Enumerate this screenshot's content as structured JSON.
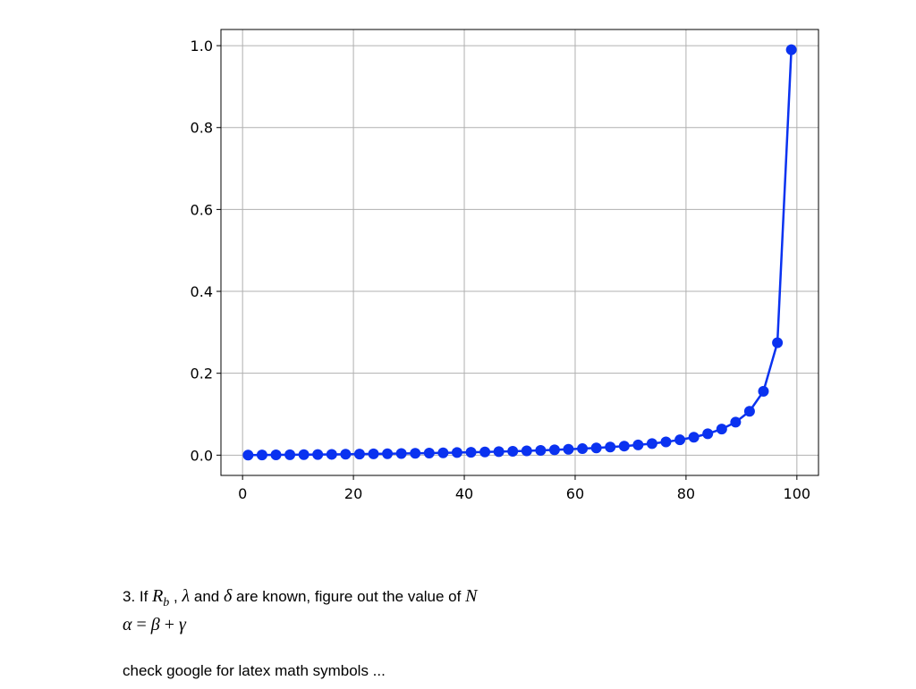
{
  "chart_data": {
    "type": "line",
    "x": [
      1.0,
      3.51,
      6.03,
      8.54,
      11.05,
      13.56,
      16.08,
      18.59,
      21.1,
      23.62,
      26.13,
      28.64,
      31.15,
      33.67,
      36.18,
      38.69,
      41.21,
      43.72,
      46.23,
      48.74,
      51.26,
      53.77,
      56.28,
      58.79,
      61.31,
      63.82,
      66.33,
      68.85,
      71.36,
      73.87,
      76.38,
      78.9,
      81.41,
      83.92,
      86.44,
      88.95,
      91.46,
      93.97,
      96.49,
      99.0
    ],
    "series": [
      {
        "color": "#0a32f0",
        "values": [
          0.000101,
          0.000364,
          0.000641,
          0.000934,
          0.001242,
          0.001569,
          0.001916,
          0.002283,
          0.002675,
          0.003092,
          0.003537,
          0.004014,
          0.004525,
          0.005075,
          0.005669,
          0.006311,
          0.007008,
          0.007768,
          0.008598,
          0.00951,
          0.010516,
          0.011631,
          0.012874,
          0.014269,
          0.015845,
          0.01764,
          0.019703,
          0.022099,
          0.024915,
          0.028273,
          0.032346,
          0.037387,
          0.043793,
          0.052201,
          0.063725,
          0.080489,
          0.107117,
          0.155959,
          0.274673,
          0.99
        ]
      }
    ],
    "xlim": [
      -3.9,
      103.9
    ],
    "ylim": [
      -0.0495,
      1.0395
    ],
    "xticks": [
      0,
      20,
      40,
      60,
      80,
      100
    ],
    "yticks": [
      {
        "value": 0,
        "label": "0.0"
      },
      {
        "value": 0.2,
        "label": "0.2"
      },
      {
        "value": 0.4,
        "label": "0.4"
      },
      {
        "value": 0.6,
        "label": "0.6"
      },
      {
        "value": 0.8,
        "label": "0.8"
      },
      {
        "value": 1,
        "label": "1.0"
      }
    ],
    "grid": true,
    "markers": true
  },
  "text_cells": [
    {
      "segments": [
        "3. If ",
        "R",
        "b",
        " , ",
        "λ",
        " and ",
        "δ",
        " are known, figure out the value of ",
        "N"
      ]
    },
    {
      "segments": [
        "α",
        " = ",
        "β",
        " + ",
        "γ"
      ]
    },
    {
      "segments": [
        "check google for latex math symbols ..."
      ]
    }
  ]
}
